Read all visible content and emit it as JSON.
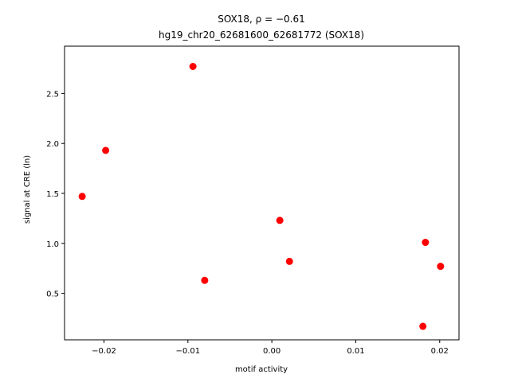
{
  "chart_data": {
    "type": "scatter",
    "title": "SOX18, ρ = −0.61",
    "subtitle": "hg19_chr20_62681600_62681772 (SOX18)",
    "x_label": "motif activity",
    "y_label": "signal at CRE (ln)",
    "series": [
      {
        "color": "#ff0000",
        "x": [
          -0.0094,
          -0.0198,
          -0.0226,
          0.00095,
          0.0021,
          -0.008,
          0.0183,
          0.0201,
          0.018
        ],
        "values": [
          2.77,
          1.93,
          1.47,
          1.23,
          0.82,
          0.63,
          1.01,
          0.77,
          0.17
        ]
      }
    ],
    "xlim": [
      -0.0247,
      0.0223
    ],
    "ylim": [
      0.035,
      2.973
    ],
    "xticks": [
      {
        "value": -0.02,
        "label": "−0.02"
      },
      {
        "value": -0.01,
        "label": "−0.01"
      },
      {
        "value": 0,
        "label": "0.00"
      },
      0.01,
      0.02
    ],
    "yticks": [
      0.5,
      {
        "value": 1,
        "label": "1.0"
      },
      1.5,
      {
        "value": 2,
        "label": "2.0"
      },
      2.5
    ],
    "grid": false
  }
}
